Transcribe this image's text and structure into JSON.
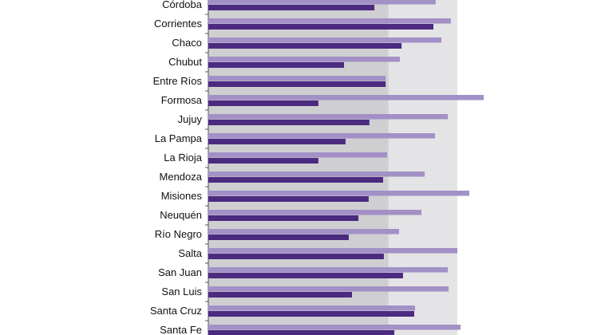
{
  "chart_data": {
    "type": "bar",
    "orientation": "horizontal",
    "title": "",
    "xlabel": "",
    "ylabel": "",
    "xlim": [
      0,
      115
    ],
    "bands": [
      {
        "from": 0,
        "to": 72.4,
        "color": "#cfcfd1"
      },
      {
        "from": 72.4,
        "to": 100,
        "color": "#e4e4e6"
      }
    ],
    "categories": [
      "Córdoba",
      "Corrientes",
      "Chaco",
      "Chubut",
      "Entre Ríos",
      "Formosa",
      "Jujuy",
      "La Pampa",
      "La Rioja",
      "Mendoza",
      "Misiones",
      "Neuquén",
      "Río Negro",
      "Salta",
      "San Juan",
      "San Luis",
      "Santa Cruz",
      "Santa Fe"
    ],
    "series": [
      {
        "name": "series-light",
        "color": "#a290c6",
        "values": [
          91.3,
          97.4,
          93.6,
          76.9,
          71.2,
          110.6,
          96.2,
          91.0,
          71.8,
          86.9,
          104.8,
          85.6,
          76.6,
          100.0,
          96.2,
          96.5,
          83.0,
          101.3
        ]
      },
      {
        "name": "series-dark",
        "color": "#4b2a80",
        "values": [
          66.7,
          90.4,
          77.6,
          54.5,
          71.2,
          44.2,
          64.7,
          55.1,
          44.2,
          70.2,
          64.4,
          60.3,
          56.4,
          70.5,
          78.2,
          57.7,
          82.7,
          74.7
        ]
      }
    ]
  }
}
